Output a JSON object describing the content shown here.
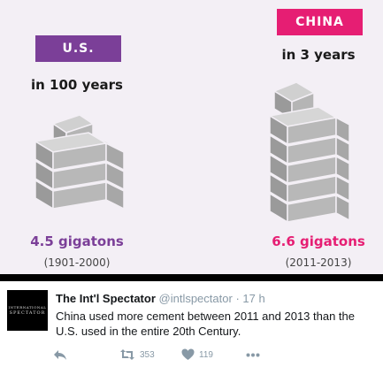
{
  "infographic": {
    "us": {
      "tag": "U.S.",
      "subtitle": "in 100 years",
      "amount": "4.5 gigatons",
      "range": "(1901-2000)"
    },
    "china": {
      "tag": "CHINA",
      "subtitle": "in 3 years",
      "amount": "6.6 gigatons",
      "range": "(2011-2013)"
    },
    "colors": {
      "us": "#7b3f98",
      "china": "#e61e73",
      "background": "#f3eff5",
      "block": "#a9a9a9"
    }
  },
  "tweet": {
    "name": "The Int'l Spectator",
    "handle": "@intlspectator",
    "time": "17 h",
    "text": "China used more cement between 2011 and 2013 than the U.S. used in the entire 20th Century.",
    "avatar": {
      "line1": "INTERNATIONAL",
      "line2": "SPECTATOR"
    },
    "actions": {
      "reply_icon": "reply-icon",
      "retweet_icon": "retweet-icon",
      "retweet_count": "353",
      "like_icon": "heart-icon",
      "like_count": "119",
      "more_icon": "more-dots-icon"
    }
  }
}
